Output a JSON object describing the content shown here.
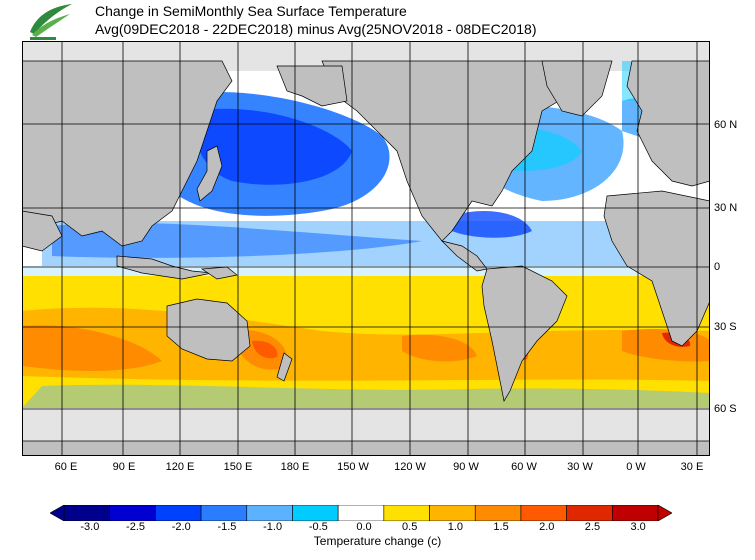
{
  "title": {
    "line1": "Change in SemiMonthly Sea Surface Temperature",
    "line2": "Avg(09DEC2018 - 22DEC2018) minus Avg(25NOV2018 - 08DEC2018)"
  },
  "logo": {
    "icon": "leaf-logo-icon"
  },
  "map": {
    "lon_labels": [
      "60 E",
      "90 E",
      "120 E",
      "150 E",
      "180 E",
      "150 W",
      "120 W",
      "90 W",
      "60 W",
      "30 W",
      "0 W",
      "30 E"
    ],
    "lat_labels": [
      "60 N",
      "30 N",
      "0",
      "30 S",
      "60 S"
    ],
    "colors": {
      "land": "#bfbfbf",
      "ice": "#e4e4e4",
      "ocean_neutral": "#ffffff",
      "grid": "#000000"
    }
  },
  "colorbar": {
    "title": "Temperature change  (c)",
    "tick_labels": [
      "-3.0",
      "-2.5",
      "-2.0",
      "-1.5",
      "-1.0",
      "-0.5",
      "0.0",
      "0.5",
      "1.0",
      "1.5",
      "2.0",
      "2.5",
      "3.0"
    ],
    "colors": [
      "#00008c",
      "#0000d0",
      "#0040ff",
      "#2b7dff",
      "#5bb2ff",
      "#00ccff",
      "#ffffff",
      "#ffe000",
      "#ffb400",
      "#ff8c00",
      "#ff5a00",
      "#e02800",
      "#c00000"
    ]
  }
}
